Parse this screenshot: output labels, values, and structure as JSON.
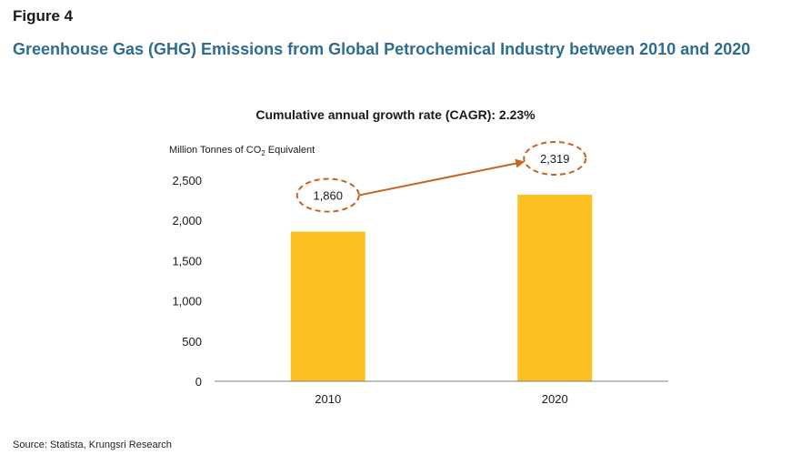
{
  "figure_label": "Figure 4",
  "figure_title": "Greenhouse Gas (GHG) Emissions from Global Petrochemical Industry between 2010 and 2020",
  "source": "Source: Statista, Krungsri Research",
  "colors": {
    "bar": "#fbbf1f",
    "arrow": "#c8641e",
    "title": "#2e6d8f",
    "axis": "#7f7f7f"
  },
  "chart_data": {
    "type": "bar",
    "title": "Cumulative annual growth rate (CAGR): 2.23%",
    "ylabel_parts": [
      "Million Tonnes of CO",
      "2",
      " Equivalent"
    ],
    "categories": [
      "2010",
      "2020"
    ],
    "values": [
      1860,
      2319
    ],
    "value_labels": [
      "1,860",
      "2,319"
    ],
    "ylim": [
      0,
      2500
    ],
    "yticks": [
      0,
      500,
      1000,
      1500,
      2000,
      2500
    ],
    "ytick_labels": [
      "0",
      "500",
      "1,000",
      "1,500",
      "2,000",
      "2,500"
    ],
    "grid": false,
    "legend": "none",
    "annotation": "arrow from 2010 value label to 2020 value label"
  }
}
